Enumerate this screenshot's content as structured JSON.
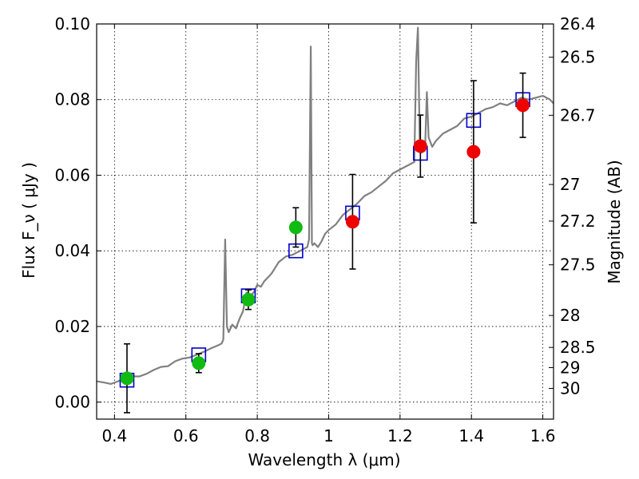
{
  "chart_data": {
    "type": "scatter",
    "xlabel": "Wavelength  λ (μm)",
    "ylabel": "Flux  F_ν  ( μJy )",
    "ylabel_right": "Magnitude (AB)",
    "xlim": [
      0.35,
      1.63
    ],
    "ylim": [
      -0.0045,
      0.1
    ],
    "grid": true,
    "xticks": [
      {
        "value": 0.4,
        "label": "0.4"
      },
      {
        "value": 0.6,
        "label": "0.6"
      },
      {
        "value": 0.8,
        "label": "0.8"
      },
      {
        "value": 1.0,
        "label": "1"
      },
      {
        "value": 1.2,
        "label": "1.2"
      },
      {
        "value": 1.4,
        "label": "1.4"
      },
      {
        "value": 1.6,
        "label": "1.6"
      }
    ],
    "yticks": [
      {
        "value": 0.0,
        "label": "0.00"
      },
      {
        "value": 0.02,
        "label": "0.02"
      },
      {
        "value": 0.04,
        "label": "0.04"
      },
      {
        "value": 0.06,
        "label": "0.06"
      },
      {
        "value": 0.08,
        "label": "0.08"
      },
      {
        "value": 0.1,
        "label": "0.10"
      }
    ],
    "right_ticks": [
      {
        "value": 26.4,
        "label": "26.4"
      },
      {
        "value": 26.5,
        "label": "26.5"
      },
      {
        "value": 26.7,
        "label": "26.7"
      },
      {
        "value": 27,
        "label": "27"
      },
      {
        "value": 27.2,
        "label": "27.2"
      },
      {
        "value": 27.5,
        "label": "27.5"
      },
      {
        "value": 28,
        "label": "28"
      },
      {
        "value": 28.5,
        "label": "28.5"
      },
      {
        "value": 29,
        "label": "29"
      },
      {
        "value": 30,
        "label": "30"
      }
    ],
    "series": [
      {
        "type": "line",
        "color": "#808080",
        "x": [
          0.35,
          0.37,
          0.39,
          0.41,
          0.43,
          0.45,
          0.47,
          0.49,
          0.51,
          0.53,
          0.55,
          0.57,
          0.59,
          0.61,
          0.63,
          0.65,
          0.67,
          0.69,
          0.7,
          0.705,
          0.71,
          0.715,
          0.72,
          0.73,
          0.74,
          0.75,
          0.76,
          0.77,
          0.78,
          0.79,
          0.8,
          0.81,
          0.82,
          0.84,
          0.86,
          0.88,
          0.9,
          0.92,
          0.94,
          0.945,
          0.95,
          0.953,
          0.955,
          0.96,
          0.97,
          0.98,
          0.99,
          1.0,
          1.02,
          1.04,
          1.06,
          1.08,
          1.1,
          1.12,
          1.14,
          1.16,
          1.18,
          1.2,
          1.22,
          1.24,
          1.245,
          1.25,
          1.255,
          1.26,
          1.27,
          1.275,
          1.28,
          1.29,
          1.3,
          1.32,
          1.34,
          1.36,
          1.38,
          1.4,
          1.42,
          1.44,
          1.46,
          1.48,
          1.5,
          1.52,
          1.54,
          1.56,
          1.58,
          1.6,
          1.62,
          1.63
        ],
        "y": [
          0.0055,
          0.0052,
          0.0048,
          0.0055,
          0.0063,
          0.0068,
          0.0068,
          0.0075,
          0.0085,
          0.0093,
          0.0095,
          0.0108,
          0.0115,
          0.0118,
          0.0125,
          0.0133,
          0.0142,
          0.015,
          0.0155,
          0.0165,
          0.043,
          0.02,
          0.0185,
          0.0205,
          0.0195,
          0.022,
          0.024,
          0.029,
          0.028,
          0.029,
          0.031,
          0.0305,
          0.032,
          0.034,
          0.037,
          0.0385,
          0.039,
          0.04,
          0.041,
          0.043,
          0.094,
          0.042,
          0.0415,
          0.042,
          0.041,
          0.0425,
          0.0445,
          0.0455,
          0.047,
          0.0495,
          0.051,
          0.0525,
          0.0545,
          0.0555,
          0.057,
          0.0585,
          0.0605,
          0.0615,
          0.0625,
          0.0635,
          0.09,
          0.099,
          0.07,
          0.066,
          0.0665,
          0.082,
          0.07,
          0.0675,
          0.069,
          0.071,
          0.072,
          0.073,
          0.075,
          0.0755,
          0.0765,
          0.0775,
          0.078,
          0.079,
          0.0785,
          0.0795,
          0.0805,
          0.08,
          0.0805,
          0.081,
          0.08,
          0.079
        ]
      },
      {
        "type": "scatter",
        "marker": "circle",
        "color": "#11bb11",
        "x": [
          0.435,
          0.636,
          0.775,
          0.908
        ],
        "y": [
          0.0063,
          0.0103,
          0.0271,
          0.0462
        ],
        "err": [
          0.0091,
          0.0025,
          0.0026,
          0.0052
        ]
      },
      {
        "type": "scatter",
        "marker": "circle",
        "color": "#ee0000",
        "x": [
          1.067,
          1.257,
          1.406,
          1.544
        ],
        "y": [
          0.0477,
          0.0677,
          0.0662,
          0.0785
        ],
        "err": [
          0.0125,
          0.0082,
          0.0188,
          0.0085
        ]
      },
      {
        "type": "scatter",
        "marker": "square",
        "color": "#0000cc",
        "x": [
          0.435,
          0.636,
          0.775,
          0.908,
          1.067,
          1.257,
          1.406,
          1.544
        ],
        "y": [
          0.0058,
          0.0125,
          0.0281,
          0.04,
          0.05,
          0.0658,
          0.0745,
          0.08
        ]
      }
    ]
  }
}
